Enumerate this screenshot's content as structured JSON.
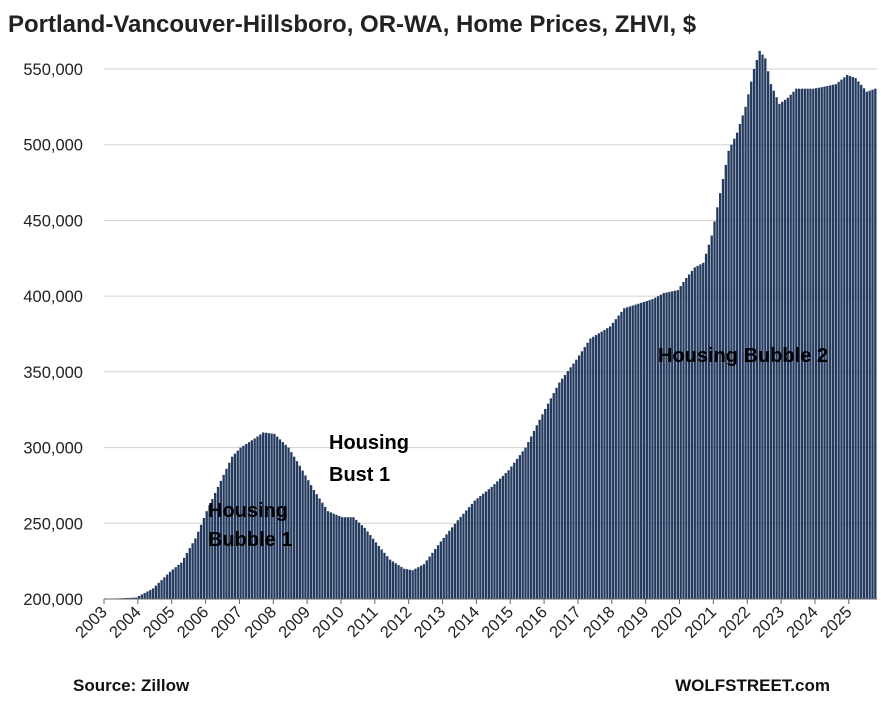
{
  "chart_data": {
    "type": "bar",
    "title": "Portland-Vancouver-Hillsboro, OR-WA, Home Prices, ZHVI, $",
    "xlabel": "",
    "ylabel": "",
    "ylim": [
      200000,
      560000
    ],
    "yticks": [
      "200,000",
      "250,000",
      "300,000",
      "350,000",
      "400,000",
      "450,000",
      "500,000",
      "550,000"
    ],
    "ytick_values": [
      200000,
      250000,
      300000,
      350000,
      400000,
      450000,
      500000,
      550000
    ],
    "xticks": [
      "2003",
      "2004",
      "2005",
      "2006",
      "2007",
      "2008",
      "2009",
      "2010",
      "2011",
      "2012",
      "2013",
      "2014",
      "2015",
      "2016",
      "2017",
      "2018",
      "2019",
      "2020",
      "2021",
      "2022",
      "2023",
      "2024",
      "2025"
    ],
    "x_start": "2003-01",
    "x_end": "2025-10",
    "grid": true,
    "bar_color": "#243a5e",
    "anchors": [
      [
        "2003-01",
        200000
      ],
      [
        "2003-12",
        201000
      ],
      [
        "2004-06",
        207000
      ],
      [
        "2004-12",
        218000
      ],
      [
        "2005-04",
        224000
      ],
      [
        "2005-09",
        240000
      ],
      [
        "2006-01",
        258000
      ],
      [
        "2006-06",
        278000
      ],
      [
        "2006-10",
        294000
      ],
      [
        "2007-01",
        300000
      ],
      [
        "2007-06",
        306000
      ],
      [
        "2007-09",
        310000
      ],
      [
        "2008-01",
        309000
      ],
      [
        "2008-06",
        300000
      ],
      [
        "2008-10",
        288000
      ],
      [
        "2009-03",
        272000
      ],
      [
        "2009-08",
        258000
      ],
      [
        "2010-01",
        254000
      ],
      [
        "2010-05",
        254000
      ],
      [
        "2010-09",
        247000
      ],
      [
        "2011-02",
        235000
      ],
      [
        "2011-06",
        226000
      ],
      [
        "2011-11",
        220000
      ],
      [
        "2012-02",
        219000
      ],
      [
        "2012-06",
        223000
      ],
      [
        "2012-12",
        238000
      ],
      [
        "2013-06",
        252000
      ],
      [
        "2013-12",
        265000
      ],
      [
        "2014-06",
        274000
      ],
      [
        "2014-12",
        285000
      ],
      [
        "2015-06",
        300000
      ],
      [
        "2015-12",
        322000
      ],
      [
        "2016-06",
        343000
      ],
      [
        "2016-12",
        358000
      ],
      [
        "2017-05",
        372000
      ],
      [
        "2017-12",
        380000
      ],
      [
        "2018-05",
        392000
      ],
      [
        "2018-10",
        395000
      ],
      [
        "2019-03",
        398000
      ],
      [
        "2019-07",
        402000
      ],
      [
        "2019-12",
        404000
      ],
      [
        "2020-03",
        412000
      ],
      [
        "2020-06",
        419000
      ],
      [
        "2020-09",
        422000
      ],
      [
        "2020-12",
        440000
      ],
      [
        "2021-03",
        468000
      ],
      [
        "2021-06",
        496000
      ],
      [
        "2021-09",
        508000
      ],
      [
        "2021-12",
        525000
      ],
      [
        "2022-03",
        550000
      ],
      [
        "2022-05",
        562000
      ],
      [
        "2022-07",
        557000
      ],
      [
        "2022-09",
        540000
      ],
      [
        "2022-12",
        527000
      ],
      [
        "2023-03",
        531000
      ],
      [
        "2023-06",
        537000
      ],
      [
        "2023-12",
        537000
      ],
      [
        "2024-03",
        538000
      ],
      [
        "2024-08",
        540000
      ],
      [
        "2024-12",
        546000
      ],
      [
        "2025-03",
        544000
      ],
      [
        "2025-07",
        535000
      ],
      [
        "2025-10",
        537000
      ]
    ],
    "annotations": [
      {
        "lines": [
          "Housing",
          "Bubble 1"
        ],
        "color": "#ffffff"
      },
      {
        "lines": [
          "Housing",
          "Bust 1"
        ],
        "color": "#ff0000"
      },
      {
        "lines": [
          "Housing Bubble 2"
        ],
        "color": "#ffffff"
      }
    ],
    "source": "Source: Zillow",
    "watermark": "WOLFSTREET.com"
  }
}
